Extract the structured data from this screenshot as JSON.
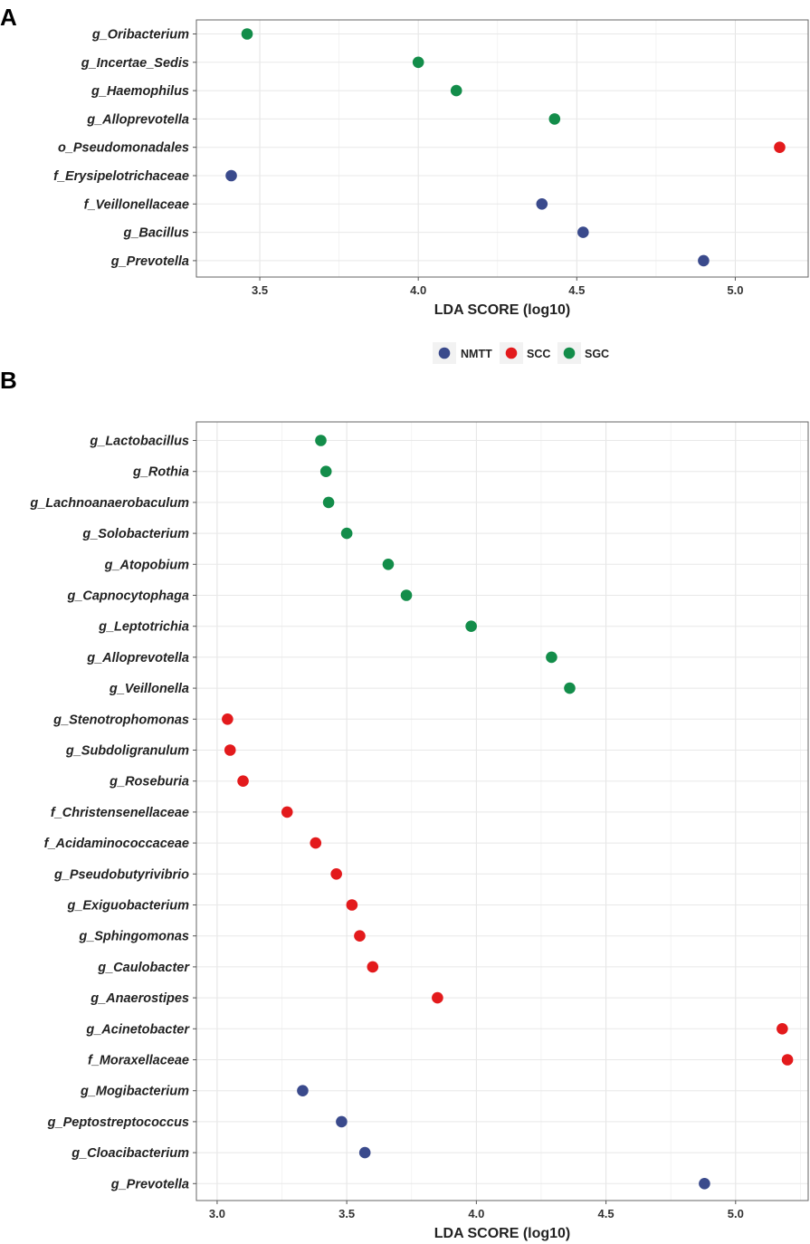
{
  "colors": {
    "NMTT": "#3a4a8c",
    "SCC": "#e31a1c",
    "SGC": "#138d4a"
  },
  "legend": [
    {
      "key": "NMTT",
      "label": "NMTT"
    },
    {
      "key": "SCC",
      "label": "SCC"
    },
    {
      "key": "SGC",
      "label": "SGC"
    }
  ],
  "chart_data": [
    {
      "type": "scatter",
      "panel": "A",
      "xlabel": "LDA SCORE (log10)",
      "xlim": [
        3.3,
        5.23
      ],
      "xticks": [
        3.5,
        4.0,
        4.5,
        5.0
      ],
      "xtick_labels": [
        "3.5",
        "4.0",
        "4.5",
        "5.0"
      ],
      "points": [
        {
          "label": "g_Oribacterium",
          "value": 3.46,
          "group": "SGC"
        },
        {
          "label": "g_Incertae_Sedis",
          "value": 4.0,
          "group": "SGC"
        },
        {
          "label": "g_Haemophilus",
          "value": 4.12,
          "group": "SGC"
        },
        {
          "label": "g_Alloprevotella",
          "value": 4.43,
          "group": "SGC"
        },
        {
          "label": "o_Pseudomonadales",
          "value": 5.14,
          "group": "SCC"
        },
        {
          "label": "f_Erysipelotrichaceae",
          "value": 3.41,
          "group": "NMTT"
        },
        {
          "label": "f_Veillonellaceae",
          "value": 4.39,
          "group": "NMTT"
        },
        {
          "label": "g_Bacillus",
          "value": 4.52,
          "group": "NMTT"
        },
        {
          "label": "g_Prevotella",
          "value": 4.9,
          "group": "NMTT"
        }
      ]
    },
    {
      "type": "scatter",
      "panel": "B",
      "xlabel": "LDA SCORE (log10)",
      "xlim": [
        2.92,
        5.28
      ],
      "xticks": [
        3.0,
        3.5,
        4.0,
        4.5,
        5.0
      ],
      "xtick_labels": [
        "3.0",
        "3.5",
        "4.0",
        "4.5",
        "5.0"
      ],
      "points": [
        {
          "label": "g_Lactobacillus",
          "value": 3.4,
          "group": "SGC"
        },
        {
          "label": "g_Rothia",
          "value": 3.42,
          "group": "SGC"
        },
        {
          "label": "g_Lachnoanaerobaculum",
          "value": 3.43,
          "group": "SGC"
        },
        {
          "label": "g_Solobacterium",
          "value": 3.5,
          "group": "SGC"
        },
        {
          "label": "g_Atopobium",
          "value": 3.66,
          "group": "SGC"
        },
        {
          "label": "g_Capnocytophaga",
          "value": 3.73,
          "group": "SGC"
        },
        {
          "label": "g_Leptotrichia",
          "value": 3.98,
          "group": "SGC"
        },
        {
          "label": "g_Alloprevotella",
          "value": 4.29,
          "group": "SGC"
        },
        {
          "label": "g_Veillonella",
          "value": 4.36,
          "group": "SGC"
        },
        {
          "label": "g_Stenotrophomonas",
          "value": 3.04,
          "group": "SCC"
        },
        {
          "label": "g_Subdoligranulum",
          "value": 3.05,
          "group": "SCC"
        },
        {
          "label": "g_Roseburia",
          "value": 3.1,
          "group": "SCC"
        },
        {
          "label": "f_Christensenellaceae",
          "value": 3.27,
          "group": "SCC"
        },
        {
          "label": "f_Acidaminococcaceae",
          "value": 3.38,
          "group": "SCC"
        },
        {
          "label": "g_Pseudobutyrivibrio",
          "value": 3.46,
          "group": "SCC"
        },
        {
          "label": "g_Exiguobacterium",
          "value": 3.52,
          "group": "SCC"
        },
        {
          "label": "g_Sphingomonas",
          "value": 3.55,
          "group": "SCC"
        },
        {
          "label": "g_Caulobacter",
          "value": 3.6,
          "group": "SCC"
        },
        {
          "label": "g_Anaerostipes",
          "value": 3.85,
          "group": "SCC"
        },
        {
          "label": "g_Acinetobacter",
          "value": 5.18,
          "group": "SCC"
        },
        {
          "label": "f_Moraxellaceae",
          "value": 5.2,
          "group": "SCC"
        },
        {
          "label": "g_Mogibacterium",
          "value": 3.33,
          "group": "NMTT"
        },
        {
          "label": "g_Peptostreptococcus",
          "value": 3.48,
          "group": "NMTT"
        },
        {
          "label": "g_Cloacibacterium",
          "value": 3.57,
          "group": "NMTT"
        },
        {
          "label": "g_Prevotella",
          "value": 4.88,
          "group": "NMTT"
        }
      ]
    }
  ]
}
